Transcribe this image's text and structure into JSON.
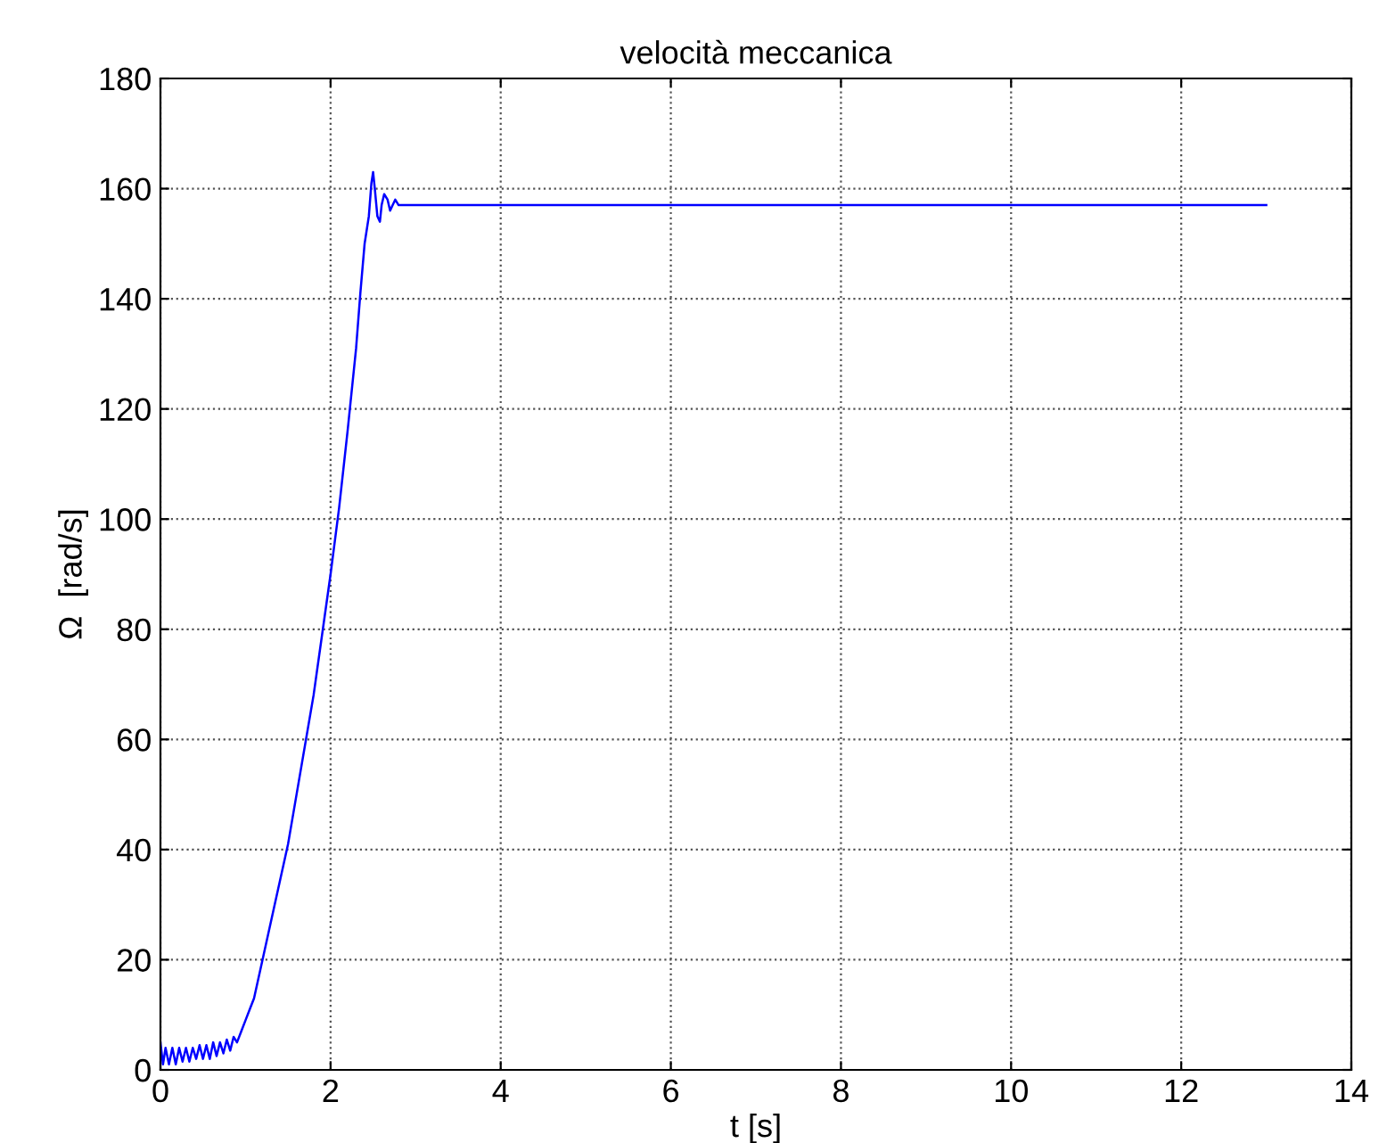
{
  "chart_data": {
    "type": "line",
    "title": "velocità meccanica",
    "xlabel": "t [s]",
    "ylabel": "Ω  [rad/s]",
    "series": [
      {
        "color": "#0000ff",
        "x": [
          0,
          0.03,
          0.06,
          0.1,
          0.14,
          0.18,
          0.22,
          0.26,
          0.3,
          0.34,
          0.38,
          0.42,
          0.46,
          0.5,
          0.54,
          0.58,
          0.62,
          0.66,
          0.7,
          0.74,
          0.78,
          0.82,
          0.86,
          0.9,
          0.95,
          1.0,
          1.05,
          1.1,
          1.2,
          1.3,
          1.4,
          1.5,
          1.6,
          1.7,
          1.8,
          1.9,
          2.0,
          2.1,
          2.2,
          2.3,
          2.35,
          2.4,
          2.45,
          2.48,
          2.5,
          2.52,
          2.55,
          2.58,
          2.6,
          2.63,
          2.67,
          2.7,
          2.73,
          2.76,
          2.8,
          13
        ],
        "values": [
          5,
          1,
          4,
          1,
          4,
          1,
          4,
          1.5,
          4,
          1.5,
          4,
          2,
          4.5,
          2,
          4.5,
          2,
          5,
          2.5,
          5,
          3,
          5.5,
          3.5,
          6,
          5,
          7,
          9,
          11,
          13,
          20,
          27,
          34,
          41,
          50,
          59,
          68,
          79,
          90,
          102,
          116,
          131,
          141,
          150,
          155,
          161,
          163,
          160,
          155,
          154,
          157,
          159,
          158,
          156,
          157,
          158,
          157,
          157
        ]
      }
    ],
    "xlim": [
      0,
      14
    ],
    "xticks": [
      0,
      2,
      4,
      6,
      8,
      10,
      12,
      14
    ],
    "ylim": [
      0,
      180
    ],
    "yticks": [
      0,
      20,
      40,
      60,
      80,
      100,
      120,
      140,
      160,
      180
    ],
    "grid": true,
    "line_style": "solid",
    "marker": "none"
  }
}
